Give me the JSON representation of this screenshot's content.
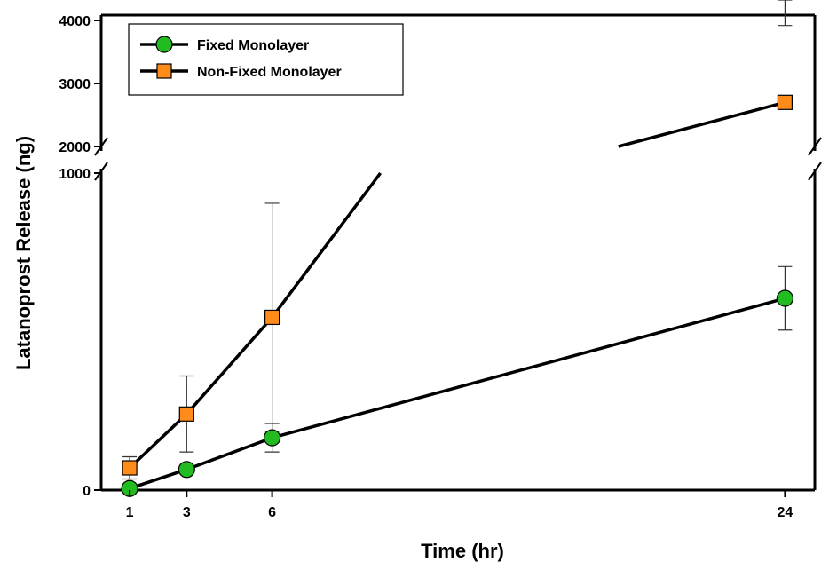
{
  "chart_data": {
    "type": "line",
    "xlabel": "Time (hr)",
    "ylabel": "Latanoprost Release (ng)",
    "x_ticks": [
      "1",
      "3",
      "6",
      "24"
    ],
    "y_ticks_lower": [
      "0",
      "1000"
    ],
    "y_ticks_upper": [
      "2000",
      "3000",
      "4000"
    ],
    "xlim": [
      0,
      25
    ],
    "ylim_lower": [
      0,
      1000
    ],
    "ylim_upper": [
      2000,
      4000
    ],
    "axis_break": [
      1000,
      2000
    ],
    "legend_position": "top-left",
    "grid": false,
    "series": [
      {
        "name": "Fixed Monolayer",
        "marker": "circle",
        "color": "#22bb22",
        "x": [
          1,
          3,
          6,
          24
        ],
        "y": [
          5,
          65,
          165,
          605
        ],
        "err": [
          0,
          0,
          45,
          100
        ]
      },
      {
        "name": "Non-Fixed Monolayer",
        "marker": "square",
        "color": "#ff8c1a",
        "x": [
          1,
          3,
          6,
          24
        ],
        "y": [
          70,
          240,
          545,
          2700
        ],
        "err": [
          35,
          120,
          360,
          1220
        ]
      }
    ]
  }
}
